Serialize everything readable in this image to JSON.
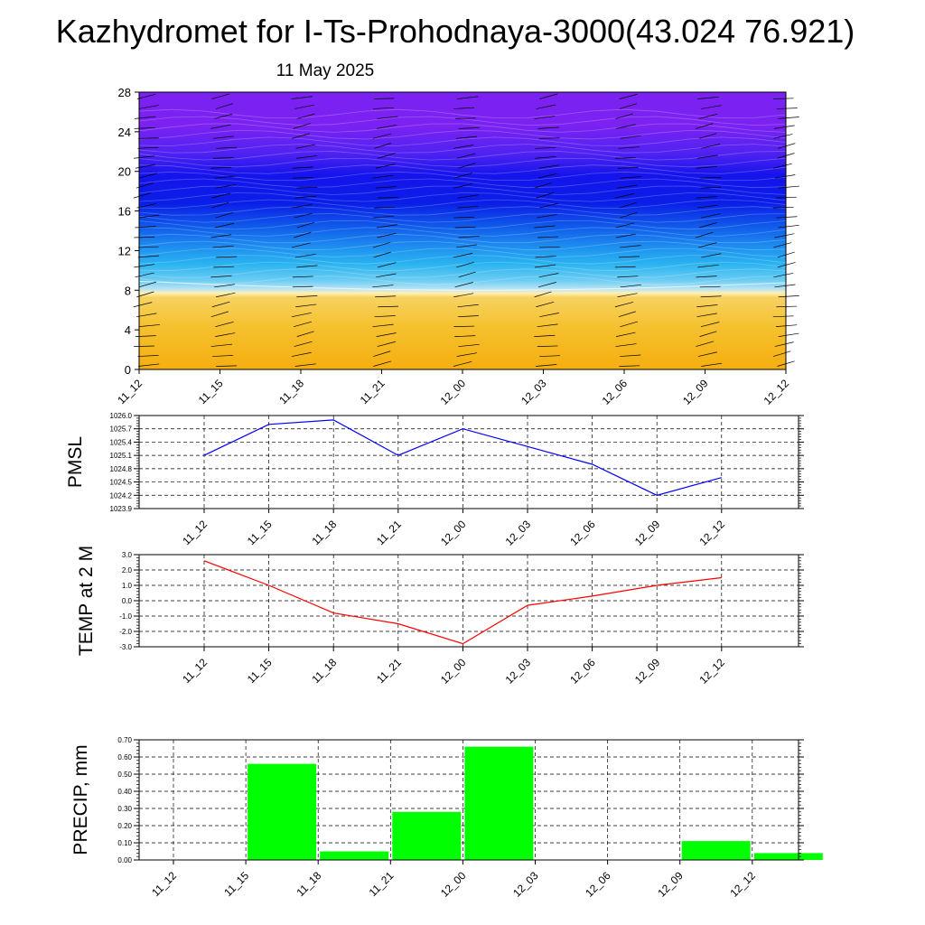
{
  "title": "Kazhydromet for I-Ts-Prohodnaya-3000(43.024 76.921)",
  "date": "11 May 2025",
  "colors": {
    "pmsl_line": "#0000ff",
    "temp_line": "#ff0000",
    "precip_bar": "#00ff00",
    "cross_top": "#7b22f2",
    "cross_mid": "#0a1ee8",
    "cross_low": "#2ab4f0",
    "cross_warm": "#f5c230"
  },
  "chart_data": [
    {
      "id": "cross_section",
      "type": "heatmap",
      "title": "",
      "xlabel": "",
      "ylabel": "",
      "categories": [
        "11_12",
        "11_15",
        "11_18",
        "11_21",
        "12_00",
        "12_03",
        "12_06",
        "12_09",
        "12_12"
      ],
      "y_ticks": [
        "0",
        "4",
        "8",
        "12",
        "16",
        "20",
        "24",
        "28"
      ],
      "ylim": [
        0,
        28
      ],
      "grid": false,
      "colormap": [
        "#7b22f2",
        "#0a1ee8",
        "#2ab4f0",
        "#f5c230"
      ],
      "wind_barbs": true
    },
    {
      "id": "pmsl",
      "type": "line",
      "title": "",
      "xlabel": "",
      "ylabel": "PMSL",
      "categories": [
        "11_12",
        "11_15",
        "11_18",
        "11_21",
        "12_00",
        "12_03",
        "12_06",
        "12_09",
        "12_12"
      ],
      "values": [
        1025.1,
        1025.8,
        1025.9,
        1025.1,
        1025.7,
        1025.3,
        1024.9,
        1024.2,
        1024.6
      ],
      "y_ticks": [
        "1023.9",
        "1024.2",
        "1024.5",
        "1024.8",
        "1025.1",
        "1025.4",
        "1025.7",
        "1026.0"
      ],
      "ylim": [
        1023.9,
        1026.0
      ],
      "grid": true
    },
    {
      "id": "temp",
      "type": "line",
      "title": "",
      "xlabel": "",
      "ylabel": "TEMP at 2 M",
      "categories": [
        "11_12",
        "11_15",
        "11_18",
        "11_21",
        "12_00",
        "12_03",
        "12_06",
        "12_09",
        "12_12"
      ],
      "values": [
        2.6,
        1.0,
        -0.8,
        -1.5,
        -2.8,
        -0.3,
        0.3,
        1.0,
        1.5
      ],
      "y_ticks": [
        "-3.0",
        "-2.0",
        "-1.0",
        "0.0",
        "1.0",
        "2.0",
        "3.0"
      ],
      "ylim": [
        -3.0,
        3.0
      ],
      "grid": true
    },
    {
      "id": "precip",
      "type": "bar",
      "title": "",
      "xlabel": "",
      "ylabel": "PRECIP, mm",
      "categories": [
        "11_12",
        "11_15",
        "11_18",
        "11_21",
        "12_00",
        "12_03",
        "12_06",
        "12_09",
        "12_12"
      ],
      "values": [
        0.0,
        0.56,
        0.05,
        0.28,
        0.66,
        0.0,
        0.0,
        0.11,
        0.04
      ],
      "y_ticks": [
        "0.00",
        "0.10",
        "0.20",
        "0.30",
        "0.40",
        "0.50",
        "0.60",
        "0.70"
      ],
      "ylim": [
        0.0,
        0.7
      ],
      "grid": true
    }
  ]
}
